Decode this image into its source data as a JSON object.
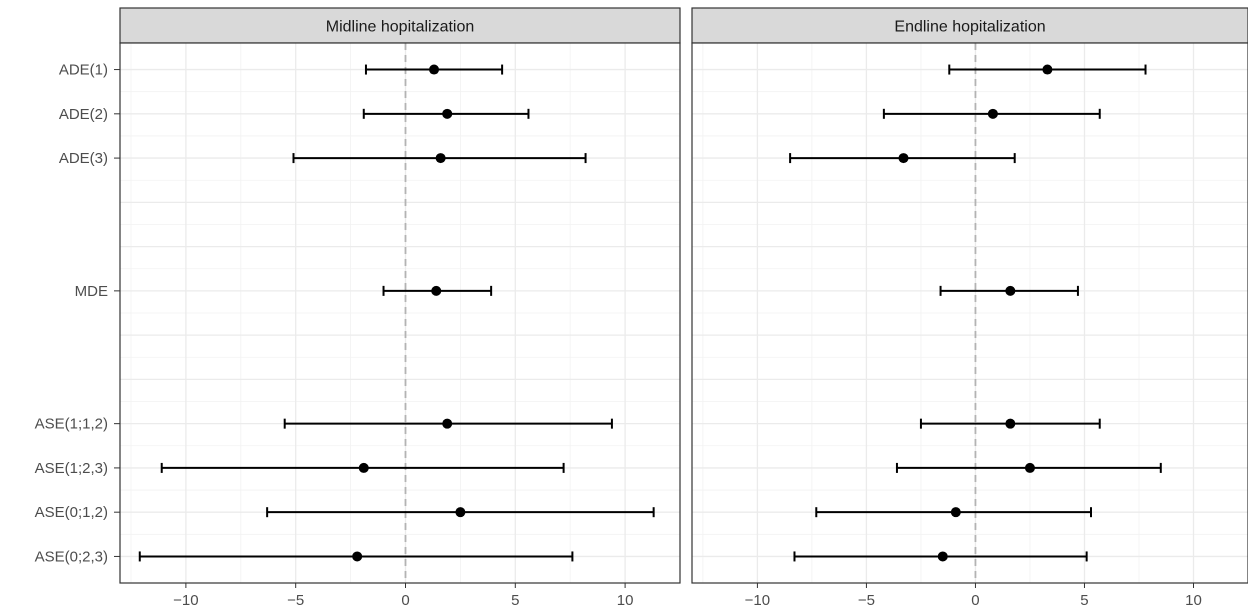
{
  "chart_data": {
    "type": "forest",
    "xlim": [
      -13,
      12.5
    ],
    "x_ticks": [
      -10,
      -5,
      0,
      5,
      10
    ],
    "x_tick_labels": [
      "−10",
      "−5",
      "0",
      "5",
      "10"
    ],
    "reference_line": 0,
    "grid": true,
    "y_categories": [
      "ADE(1)",
      "ADE(2)",
      "ADE(3)",
      "MDE",
      "ASE(1;1,2)",
      "ASE(1;2,3)",
      "ASE(0;1,2)",
      "ASE(0;2,3)"
    ],
    "y_order": [
      1,
      2,
      3,
      6,
      9,
      10,
      11,
      12
    ],
    "panels": [
      {
        "title": "Midline hopitalization",
        "points": [
          {
            "label": "ADE(1)",
            "estimate": 1.3,
            "lower": -1.8,
            "upper": 4.4
          },
          {
            "label": "ADE(2)",
            "estimate": 1.9,
            "lower": -1.9,
            "upper": 5.6
          },
          {
            "label": "ADE(3)",
            "estimate": 1.6,
            "lower": -5.1,
            "upper": 8.2
          },
          {
            "label": "MDE",
            "estimate": 1.4,
            "lower": -1.0,
            "upper": 3.9
          },
          {
            "label": "ASE(1;1,2)",
            "estimate": 1.9,
            "lower": -5.5,
            "upper": 9.4
          },
          {
            "label": "ASE(1;2,3)",
            "estimate": -1.9,
            "lower": -11.1,
            "upper": 7.2
          },
          {
            "label": "ASE(0;1,2)",
            "estimate": 2.5,
            "lower": -6.3,
            "upper": 11.3
          },
          {
            "label": "ASE(0;2,3)",
            "estimate": -2.2,
            "lower": -12.1,
            "upper": 7.6
          }
        ]
      },
      {
        "title": "Endline hopitalization",
        "points": [
          {
            "label": "ADE(1)",
            "estimate": 3.3,
            "lower": -1.2,
            "upper": 7.8
          },
          {
            "label": "ADE(2)",
            "estimate": 0.8,
            "lower": -4.2,
            "upper": 5.7
          },
          {
            "label": "ADE(3)",
            "estimate": -3.3,
            "lower": -8.5,
            "upper": 1.8
          },
          {
            "label": "MDE",
            "estimate": 1.6,
            "lower": -1.6,
            "upper": 4.7
          },
          {
            "label": "ASE(1;1,2)",
            "estimate": 1.6,
            "lower": -2.5,
            "upper": 5.7
          },
          {
            "label": "ASE(1;2,3)",
            "estimate": 2.5,
            "lower": -3.6,
            "upper": 8.5
          },
          {
            "label": "ASE(0;1,2)",
            "estimate": -0.9,
            "lower": -7.3,
            "upper": 5.3
          },
          {
            "label": "ASE(0;2,3)",
            "estimate": -1.5,
            "lower": -8.3,
            "upper": 5.1
          }
        ]
      }
    ]
  }
}
